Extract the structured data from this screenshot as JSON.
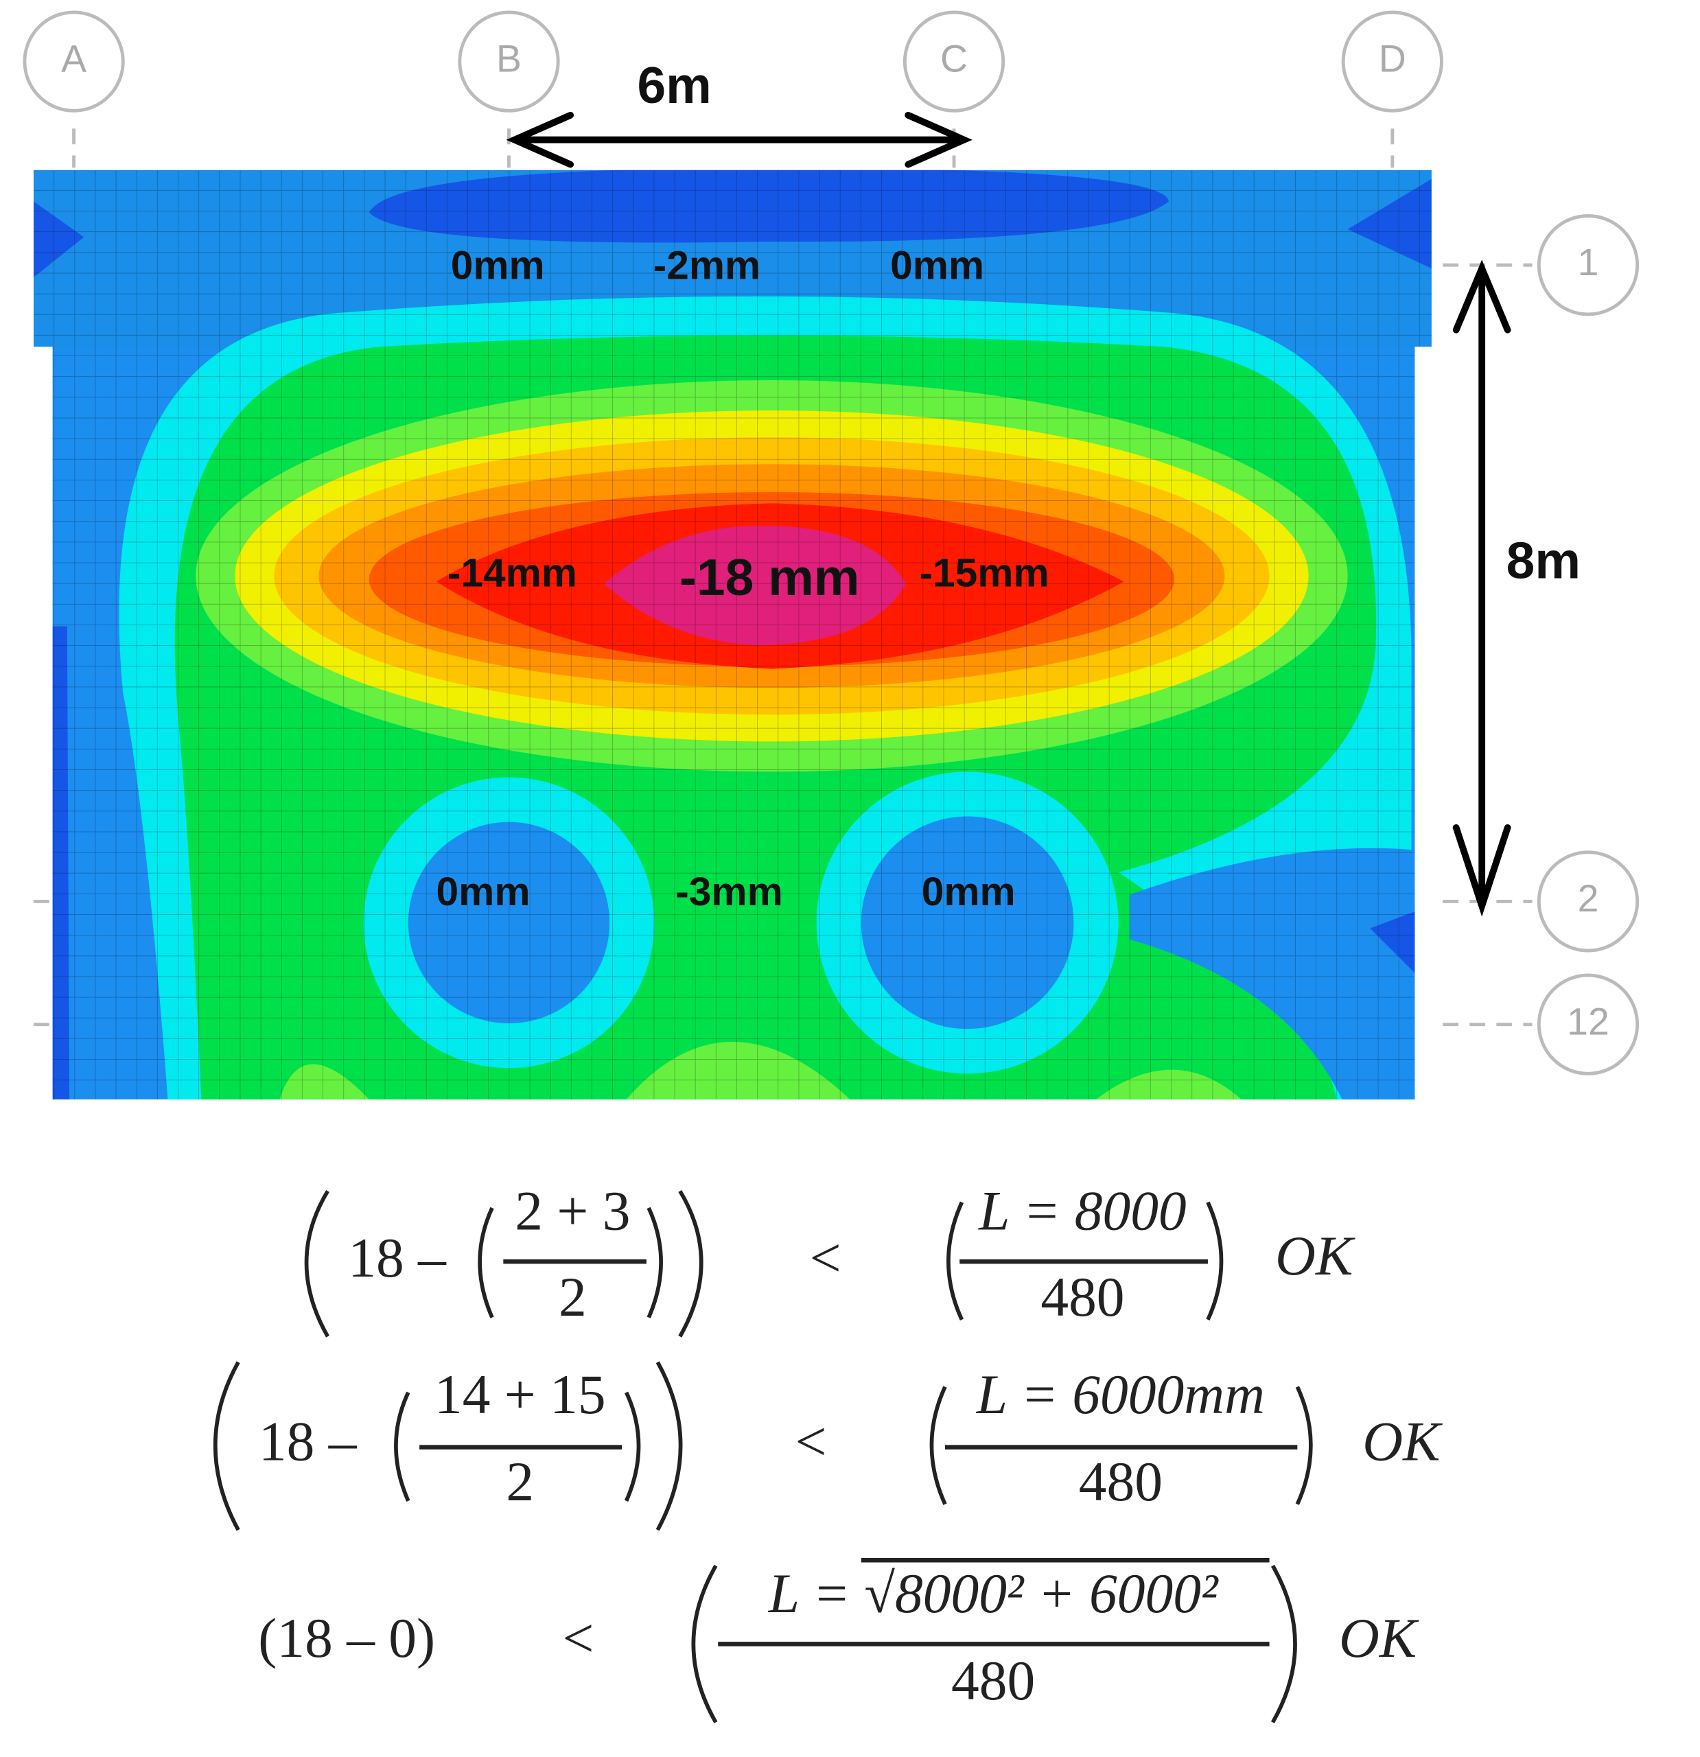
{
  "grid_labels": {
    "columns": [
      "A",
      "B",
      "C",
      "D"
    ],
    "rows": [
      "1",
      "2",
      "12"
    ]
  },
  "dimensions": {
    "horizontal": "6m",
    "vertical": "8m"
  },
  "contour_labels": [
    "0mm",
    "-2mm",
    "0mm",
    "-14mm",
    "-18 mm",
    "-15mm",
    "0mm",
    "-3mm",
    "0mm"
  ],
  "equations": [
    {
      "left": "18 –",
      "left_fraction": {
        "numerator": "2 + 3",
        "denominator": "2"
      },
      "relation": "<",
      "right_fraction": {
        "numerator": "L = 8000",
        "denominator": "480"
      },
      "result": "OK"
    },
    {
      "left": "18 –",
      "left_fraction": {
        "numerator": "14 + 15",
        "denominator": "2"
      },
      "relation": "<",
      "right_fraction": {
        "numerator": "L = 6000mm",
        "denominator": "480"
      },
      "result": "OK"
    },
    {
      "left": "(18 – 0)",
      "relation": "<",
      "right_fraction": {
        "numerator": "L = √8000² + 6000²",
        "denominator": "480"
      },
      "result": "OK"
    }
  ]
}
